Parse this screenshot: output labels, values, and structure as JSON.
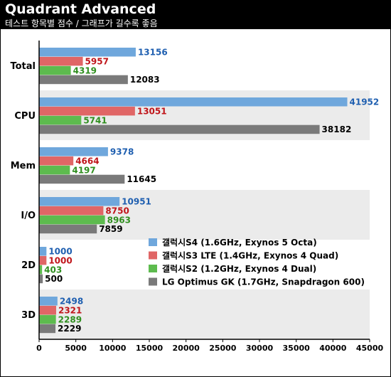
{
  "header": {
    "title": "Quadrant Advanced",
    "subtitle": "테스트 항목별 점수 / 그래프가 길수록 좋음"
  },
  "chart_data": {
    "type": "bar",
    "orientation": "horizontal",
    "title": "Quadrant Advanced",
    "subtitle": "테스트 항목별 점수 / 그래프가 길수록 좋음",
    "categories": [
      "Total",
      "CPU",
      "Mem",
      "I/O",
      "2D",
      "3D"
    ],
    "series": [
      {
        "name": "갤럭시S4 (1.6GHz, Exynos 5 Octa)",
        "color": "#6fa7dc",
        "label_color": "#1f5fb0",
        "values": [
          13156,
          41952,
          9378,
          10951,
          1000,
          2498
        ]
      },
      {
        "name": "갤럭시S3 LTE (1.4GHz, Exynos 4 Quad)",
        "color": "#e06666",
        "label_color": "#c0161b",
        "values": [
          5957,
          13051,
          4664,
          8750,
          1000,
          2321
        ]
      },
      {
        "name": "갤럭시S2 (1.2GHz, Exynos 4 Dual)",
        "color": "#5dbb4e",
        "label_color": "#2f8f1f",
        "values": [
          4319,
          5741,
          4197,
          8963,
          403,
          2289
        ]
      },
      {
        "name": "LG Optimus GK (1.7GHz, Snapdragon 600)",
        "color": "#7a7a7a",
        "label_color": "#000000",
        "values": [
          12083,
          38182,
          11645,
          7859,
          500,
          2229
        ]
      }
    ],
    "xlim": [
      0,
      45000
    ],
    "xticks": [
      0,
      5000,
      10000,
      15000,
      20000,
      25000,
      30000,
      35000,
      40000,
      45000
    ],
    "band_shading": "alternating light gray",
    "legend_position": "lower-right",
    "grid": false
  }
}
